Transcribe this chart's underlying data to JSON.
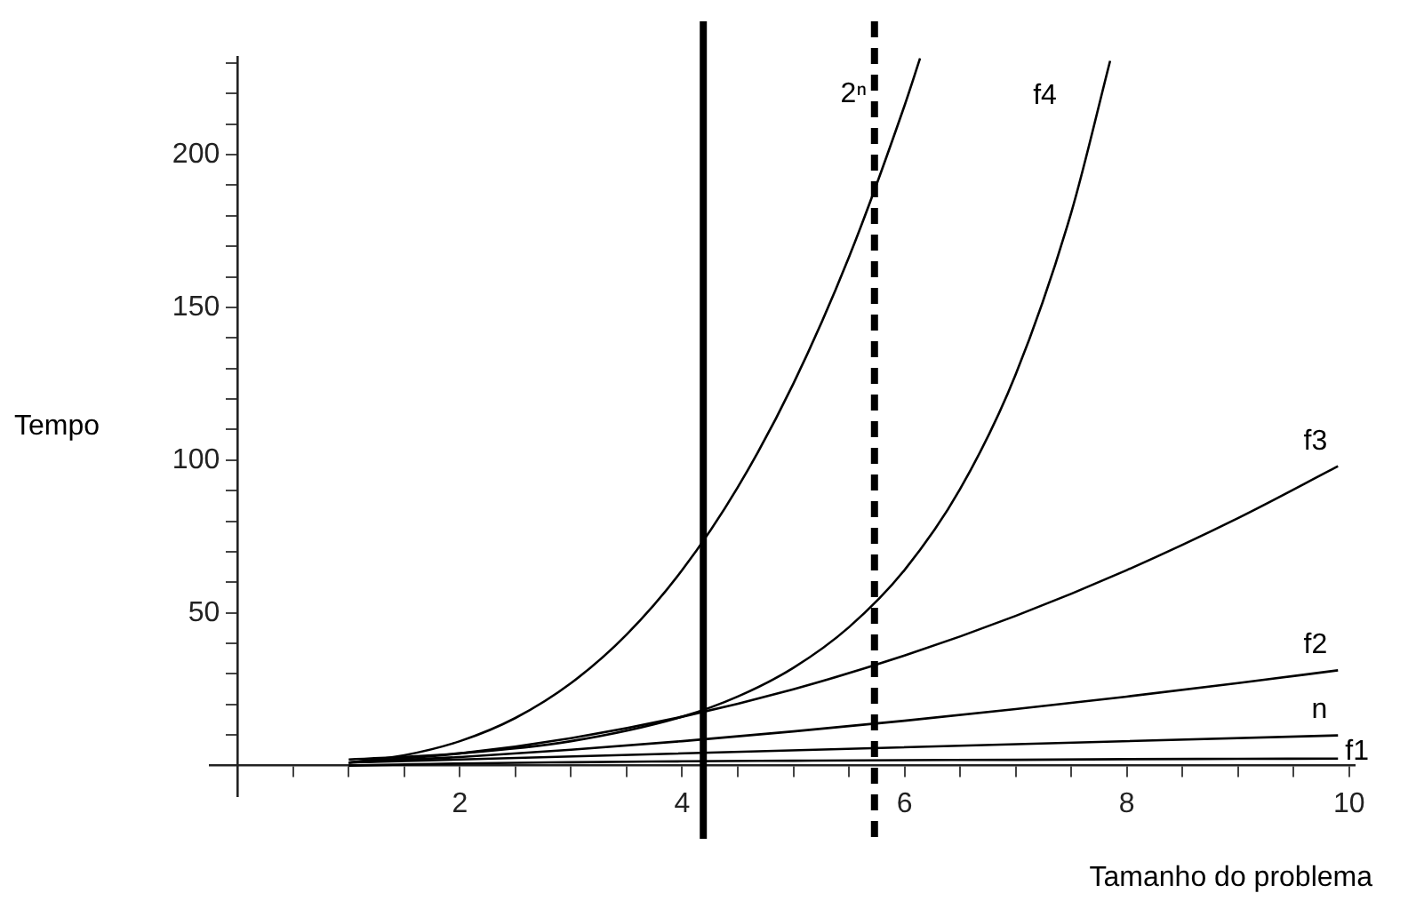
{
  "chart_data": {
    "type": "line",
    "xlabel": "Tamanho do problema",
    "ylabel": "Tempo",
    "xlim": [
      -0.25,
      10.05
    ],
    "ylim": [
      -10,
      232
    ],
    "xticks": [
      {
        "value": 0.5,
        "label": null
      },
      {
        "value": 1,
        "label": null
      },
      {
        "value": 1.5,
        "label": null
      },
      2,
      {
        "value": 2.5,
        "label": null
      },
      {
        "value": 3,
        "label": null
      },
      {
        "value": 3.5,
        "label": null
      },
      4,
      {
        "value": 4.5,
        "label": null
      },
      {
        "value": 5,
        "label": null
      },
      {
        "value": 5.5,
        "label": null
      },
      6,
      {
        "value": 6.5,
        "label": null
      },
      {
        "value": 7,
        "label": null
      },
      {
        "value": 7.5,
        "label": null
      },
      8,
      {
        "value": 8.5,
        "label": null
      },
      {
        "value": 9,
        "label": null
      },
      {
        "value": 9.5,
        "label": null
      },
      10
    ],
    "yticks": [
      {
        "value": 10,
        "label": null
      },
      {
        "value": 20,
        "label": null
      },
      {
        "value": 30,
        "label": null
      },
      {
        "value": 40,
        "label": null
      },
      50,
      {
        "value": 60,
        "label": null
      },
      {
        "value": 70,
        "label": null
      },
      {
        "value": 80,
        "label": null
      },
      {
        "value": 90,
        "label": null
      },
      100,
      {
        "value": 110,
        "label": null
      },
      {
        "value": 120,
        "label": null
      },
      {
        "value": 130,
        "label": null
      },
      {
        "value": 140,
        "label": null
      },
      150,
      {
        "value": 160,
        "label": null
      },
      {
        "value": 170,
        "label": null
      },
      {
        "value": 180,
        "label": null
      },
      {
        "value": 190,
        "label": null
      },
      200,
      {
        "value": 210,
        "label": null
      },
      {
        "value": 220,
        "label": null
      },
      {
        "value": 230,
        "label": null
      }
    ],
    "grid": false,
    "legend": false,
    "marker": "none",
    "line_style": "solid",
    "series": [
      {
        "name": "2ⁿ",
        "color": "#000000",
        "x": [
          1,
          1.5,
          2,
          2.5,
          3,
          3.5,
          4,
          4.5,
          5,
          5.5,
          6,
          6.14
        ],
        "values": [
          1,
          3.4,
          8,
          15.6,
          27,
          42.9,
          64,
          91.1,
          125,
          166.4,
          216,
          231.5
        ]
      },
      {
        "name": "f4",
        "color": "#000000",
        "x": [
          1,
          2,
          3,
          4,
          4.5,
          5,
          5.5,
          6,
          6.5,
          7,
          7.5,
          7.85
        ],
        "values": [
          2,
          4,
          8,
          16,
          22.6,
          32,
          45.3,
          64,
          90.5,
          128,
          181,
          230.7
        ]
      },
      {
        "name": "f3",
        "color": "#000000",
        "x": [
          1,
          2,
          3,
          4,
          5,
          6,
          7,
          8,
          9,
          9.9
        ],
        "values": [
          1,
          4,
          9,
          16,
          25,
          36,
          49,
          64,
          81,
          98
        ]
      },
      {
        "name": "f2",
        "color": "#000000",
        "x": [
          1,
          2,
          3,
          4,
          5,
          6,
          7,
          8,
          9,
          9.9
        ],
        "values": [
          1,
          2.8,
          5.2,
          8,
          11.2,
          14.7,
          18.5,
          22.6,
          27,
          31.2
        ]
      },
      {
        "name": "n",
        "color": "#000000",
        "x": [
          1,
          9.9
        ],
        "values": [
          1,
          9.9
        ]
      },
      {
        "name": "f1",
        "color": "#000000",
        "x": [
          1,
          2,
          3,
          4,
          5,
          6,
          7,
          8,
          9,
          9.9
        ],
        "values": [
          0,
          0.7,
          1.1,
          1.4,
          1.6,
          1.8,
          1.9,
          2.1,
          2.2,
          2.3
        ]
      }
    ],
    "ref_lines": [
      {
        "axis": "x",
        "value": 4.19,
        "color": "#000000",
        "line_style": "solid"
      },
      {
        "axis": "x",
        "value": 5.73,
        "color": "#000000",
        "line_style": "dashed"
      }
    ]
  }
}
